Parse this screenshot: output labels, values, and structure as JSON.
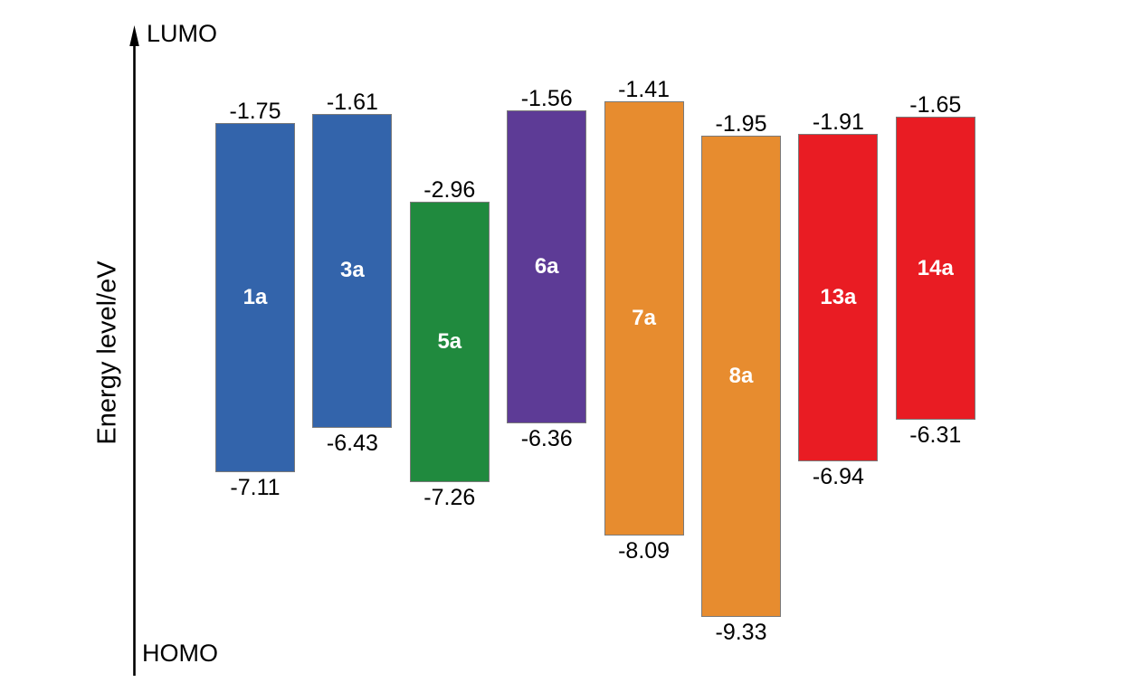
{
  "chart_data": {
    "type": "bar",
    "title": "",
    "ylabel": "Energy level/eV",
    "axis_top_label": "LUMO",
    "axis_bottom_label": "HOMO",
    "value_unit": "eV",
    "grid": false,
    "legend": "none",
    "axis_range_hint": [
      -10,
      0
    ],
    "bars": [
      {
        "label": "1a",
        "lumo": -1.75,
        "homo": -7.11,
        "color": "#3364AB"
      },
      {
        "label": "3a",
        "lumo": -1.61,
        "homo": -6.43,
        "color": "#3364AB"
      },
      {
        "label": "5a",
        "lumo": -2.96,
        "homo": -7.26,
        "color": "#208A3E"
      },
      {
        "label": "6a",
        "lumo": -1.56,
        "homo": -6.36,
        "color": "#5D3B96"
      },
      {
        "label": "7a",
        "lumo": -1.41,
        "homo": -8.09,
        "color": "#E78C2F"
      },
      {
        "label": "8a",
        "lumo": -1.95,
        "homo": -9.33,
        "color": "#E78C2F"
      },
      {
        "label": "13a",
        "lumo": -1.91,
        "homo": -6.94,
        "color": "#E91C23"
      },
      {
        "label": "14a",
        "lumo": -1.65,
        "homo": -6.31,
        "color": "#E91C23"
      }
    ]
  }
}
